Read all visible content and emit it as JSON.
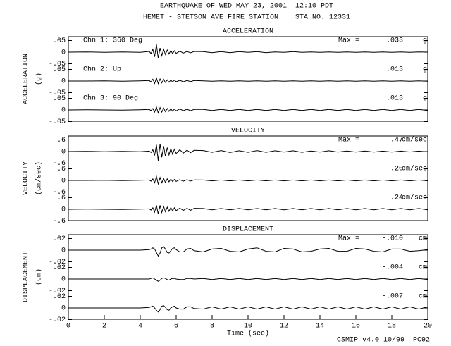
{
  "header": {
    "line1": "EARTHQUAKE OF WED MAY 23, 2001  12:10 PDT",
    "line2": "HEMET - STETSON AVE FIRE STATION    STA NO. 12331"
  },
  "footer": "CSMIP v4.0 10/99  PC92",
  "chart_data": [
    {
      "type": "line",
      "title": "ACCELERATION",
      "ylabel": "ACCELERATION",
      "yunit": "(g)",
      "max_label": "Max =",
      "unit": "g",
      "x": [
        0,
        1,
        2,
        3,
        4,
        4.5,
        4.6,
        4.7,
        4.8,
        4.9,
        5,
        5.1,
        5.2,
        5.3,
        5.4,
        5.5,
        5.6,
        5.7,
        5.8,
        5.9,
        6,
        6.2,
        6.4,
        6.6,
        6.8,
        7,
        7.5,
        8,
        8.5,
        9,
        9.5,
        10,
        10.5,
        11,
        11.5,
        12,
        12.5,
        13,
        13.5,
        14,
        14.5,
        15,
        15.5,
        16,
        16.5,
        17,
        17.5,
        18,
        18.5,
        19,
        19.5,
        20
      ],
      "xlim": [
        0,
        20
      ],
      "ylim": [
        -0.05,
        0.05
      ],
      "yticks": [
        {
          "value": 0.05,
          "label": ".05"
        },
        0,
        {
          "value": -0.05,
          "label": "-.05"
        }
      ],
      "series": [
        {
          "name": "Chn 1: 360 Deg",
          "color": "#000000",
          "max": {
            "value": 0.033,
            "label": ".033"
          },
          "values": [
            0,
            0.001,
            -0.001,
            0.001,
            -0.001,
            0.003,
            -0.006,
            0.012,
            -0.02,
            0.033,
            -0.026,
            0.018,
            -0.015,
            0.012,
            -0.01,
            0.009,
            -0.008,
            0.007,
            -0.006,
            0.006,
            -0.005,
            0.004,
            -0.004,
            0.003,
            -0.003,
            0.003,
            0.002,
            -0.002,
            0.002,
            -0.002,
            0.002,
            -0.001,
            0.002,
            -0.002,
            0.001,
            -0.001,
            0.002,
            -0.001,
            0.001,
            -0.001,
            0.001,
            -0.001,
            0.001,
            -0.001,
            0.001,
            -0.001,
            0.001,
            -0.001,
            0.001,
            -0.001,
            0.001,
            0
          ]
        },
        {
          "name": "Chn 2: Up",
          "color": "#000000",
          "max": {
            "value": 0.013,
            "label": ".013"
          },
          "values": [
            0,
            0,
            0.001,
            -0.001,
            0.001,
            0.002,
            -0.004,
            0.008,
            -0.01,
            0.013,
            -0.011,
            0.009,
            -0.008,
            0.007,
            -0.006,
            0.005,
            -0.005,
            0.004,
            -0.004,
            0.004,
            -0.003,
            0.003,
            -0.003,
            0.002,
            -0.002,
            0.002,
            0.001,
            -0.001,
            0.001,
            -0.001,
            0.001,
            -0.001,
            0.001,
            -0.001,
            0.001,
            -0.001,
            0.001,
            -0.001,
            0.001,
            -0.001,
            0.001,
            -0.001,
            0.001,
            -0.001,
            0.001,
            -0.001,
            0.001,
            -0.001,
            0.001,
            -0.001,
            0.001,
            -0.001
          ]
        },
        {
          "name": "Chn 3: 90 Deg",
          "color": "#000000",
          "max": {
            "value": 0.013,
            "label": ".013"
          },
          "values": [
            0,
            0.001,
            0,
            -0.001,
            0.001,
            0.002,
            -0.003,
            0.006,
            -0.009,
            0.012,
            -0.013,
            0.01,
            -0.009,
            0.008,
            -0.007,
            0.006,
            -0.006,
            0.005,
            -0.005,
            0.004,
            -0.004,
            0.004,
            -0.003,
            0.003,
            -0.003,
            0.002,
            0.002,
            -0.002,
            0.002,
            -0.002,
            0.002,
            -0.002,
            0.002,
            -0.002,
            0.002,
            -0.002,
            0.002,
            -0.002,
            0.002,
            -0.002,
            0.002,
            -0.002,
            0.002,
            -0.002,
            0.002,
            -0.002,
            0.002,
            -0.002,
            0.002,
            -0.002,
            0.002,
            -0.002
          ]
        }
      ]
    },
    {
      "type": "line",
      "title": "VELOCITY",
      "ylabel": "VELOCITY",
      "yunit": "(cm/sec)",
      "max_label": "Max =",
      "unit": "cm/sec",
      "x": [
        0,
        1,
        2,
        3,
        4,
        4.5,
        4.6,
        4.7,
        4.8,
        4.9,
        5,
        5.1,
        5.2,
        5.3,
        5.4,
        5.5,
        5.6,
        5.7,
        5.8,
        5.9,
        6,
        6.2,
        6.4,
        6.6,
        6.8,
        7,
        7.5,
        8,
        8.5,
        9,
        9.5,
        10,
        10.5,
        11,
        11.5,
        12,
        12.5,
        13,
        13.5,
        14,
        14.5,
        15,
        15.5,
        16,
        16.5,
        17,
        17.5,
        18,
        18.5,
        19,
        19.5,
        20
      ],
      "xlim": [
        0,
        20
      ],
      "ylim": [
        -0.6,
        0.6
      ],
      "yticks": [
        {
          "value": 0.6,
          "label": ".6"
        },
        0,
        {
          "value": -0.6,
          "label": "-.6"
        }
      ],
      "series": [
        {
          "color": "#000000",
          "max": {
            "value": 0.47,
            "label": ".47"
          },
          "values": [
            0,
            0.01,
            -0.01,
            0.01,
            -0.01,
            0.02,
            -0.05,
            0.1,
            -0.2,
            0.35,
            -0.47,
            0.4,
            -0.3,
            0.28,
            -0.25,
            0.2,
            -0.18,
            0.15,
            -0.14,
            0.12,
            -0.1,
            0.09,
            -0.08,
            0.07,
            -0.06,
            0.06,
            0.05,
            -0.04,
            0.05,
            -0.05,
            0.04,
            -0.04,
            0.05,
            -0.04,
            0.04,
            -0.03,
            0.04,
            -0.04,
            0.03,
            -0.03,
            0.04,
            -0.03,
            0.03,
            -0.03,
            0.03,
            -0.03,
            0.02,
            -0.03,
            0.02,
            -0.02,
            0.02,
            -0.02
          ]
        },
        {
          "color": "#000000",
          "max": {
            "value": 0.2,
            "label": ".20"
          },
          "values": [
            0,
            0,
            0.01,
            -0.01,
            0.01,
            0.02,
            -0.04,
            0.08,
            -0.12,
            0.2,
            -0.18,
            0.15,
            -0.12,
            0.1,
            -0.1,
            0.08,
            -0.07,
            0.07,
            -0.06,
            0.05,
            -0.05,
            0.04,
            -0.04,
            0.04,
            -0.03,
            0.03,
            0.02,
            -0.02,
            0.02,
            -0.02,
            0.02,
            -0.02,
            0.02,
            -0.02,
            0.02,
            -0.02,
            0.02,
            -0.02,
            0.02,
            -0.02,
            0.02,
            -0.02,
            0.02,
            -0.02,
            0.02,
            -0.02,
            0.02,
            -0.02,
            0.02,
            -0.02,
            0.02,
            -0.02
          ]
        },
        {
          "color": "#000000",
          "max": {
            "value": 0.24,
            "label": ".24"
          },
          "values": [
            0,
            0.01,
            0,
            -0.01,
            0.01,
            0.02,
            -0.04,
            0.08,
            -0.14,
            0.2,
            -0.24,
            0.2,
            -0.16,
            0.14,
            -0.12,
            0.11,
            -0.1,
            0.09,
            -0.08,
            0.08,
            -0.07,
            0.06,
            -0.06,
            0.05,
            -0.05,
            0.05,
            0.04,
            -0.03,
            0.04,
            -0.03,
            0.04,
            -0.03,
            0.04,
            -0.03,
            0.04,
            -0.03,
            0.04,
            -0.03,
            0.04,
            -0.03,
            0.04,
            -0.03,
            0.04,
            -0.03,
            0.04,
            -0.03,
            0.04,
            -0.03,
            0.04,
            -0.03,
            0.04,
            -0.03
          ]
        }
      ]
    },
    {
      "type": "line",
      "title": "DISPLACEMENT",
      "ylabel": "DISPLACEMENT",
      "yunit": "(cm)",
      "max_label": "Max =",
      "unit": "cm",
      "x": [
        0,
        1,
        2,
        3,
        4,
        4.5,
        4.6,
        4.7,
        4.8,
        4.9,
        5,
        5.1,
        5.2,
        5.3,
        5.4,
        5.5,
        5.6,
        5.7,
        5.8,
        5.9,
        6,
        6.2,
        6.4,
        6.6,
        6.8,
        7,
        7.5,
        8,
        8.5,
        9,
        9.5,
        10,
        10.5,
        11,
        11.5,
        12,
        12.5,
        13,
        13.5,
        14,
        14.5,
        15,
        15.5,
        16,
        16.5,
        17,
        17.5,
        18,
        18.5,
        19,
        19.5,
        20
      ],
      "xlim": [
        0,
        20
      ],
      "xticks": [
        0,
        2,
        4,
        6,
        8,
        10,
        12,
        14,
        16,
        18,
        20
      ],
      "xlabel": "Time (sec)",
      "ylim": [
        -0.02,
        0.02
      ],
      "yticks": [
        {
          "value": 0.02,
          "label": ".02"
        },
        0,
        {
          "value": -0.02,
          "label": "-.02"
        }
      ],
      "series": [
        {
          "color": "#000000",
          "max": {
            "value": -0.01,
            "label": "-.010"
          },
          "values": [
            0,
            0,
            0,
            0,
            0,
            0.001,
            0.002,
            0.004,
            0.002,
            -0.004,
            -0.01,
            -0.005,
            0.004,
            0.006,
            0.002,
            -0.004,
            -0.005,
            -0.001,
            0.003,
            0.004,
            0.001,
            -0.003,
            -0.003,
            0.002,
            0.003,
            -0.001,
            -0.003,
            0.002,
            0.003,
            -0.002,
            -0.003,
            0.002,
            0.004,
            -0.002,
            -0.003,
            0.003,
            0.002,
            -0.003,
            -0.002,
            0.002,
            0.003,
            -0.002,
            -0.002,
            0.003,
            0.002,
            -0.002,
            -0.003,
            0.002,
            0.002,
            -0.002,
            -0.001,
            0.001
          ]
        },
        {
          "color": "#000000",
          "max": {
            "value": -0.004,
            "label": "-.004"
          },
          "values": [
            0,
            0,
            0,
            0,
            0,
            0,
            0.001,
            0.002,
            0,
            -0.002,
            -0.004,
            -0.002,
            0.001,
            0.002,
            0.001,
            -0.001,
            -0.002,
            0,
            0.001,
            0.001,
            0,
            -0.001,
            -0.001,
            0.001,
            0.001,
            0,
            0.001,
            -0.001,
            0.001,
            -0.001,
            0.001,
            -0.001,
            0.001,
            -0.001,
            0.001,
            -0.001,
            0.001,
            -0.001,
            0.001,
            -0.001,
            0.001,
            -0.001,
            0.001,
            -0.001,
            0.001,
            -0.001,
            0.001,
            -0.001,
            0.001,
            -0.001,
            0.001,
            -0.001
          ]
        },
        {
          "color": "#000000",
          "max": {
            "value": -0.007,
            "label": "-.007"
          },
          "values": [
            0,
            0,
            0,
            0,
            0,
            0.001,
            0.002,
            0.003,
            0,
            -0.004,
            -0.007,
            -0.003,
            0.003,
            0.004,
            0.001,
            -0.003,
            -0.004,
            0,
            0.002,
            0.003,
            0,
            -0.002,
            -0.002,
            0.002,
            0.002,
            -0.001,
            -0.002,
            0.002,
            -0.002,
            0.002,
            -0.002,
            0.002,
            -0.002,
            0.002,
            -0.002,
            0.002,
            -0.002,
            0.002,
            -0.002,
            0.002,
            -0.002,
            0.002,
            -0.002,
            0.002,
            -0.002,
            0.002,
            -0.002,
            0.002,
            -0.002,
            0.002,
            -0.002,
            0.002
          ]
        }
      ]
    }
  ]
}
